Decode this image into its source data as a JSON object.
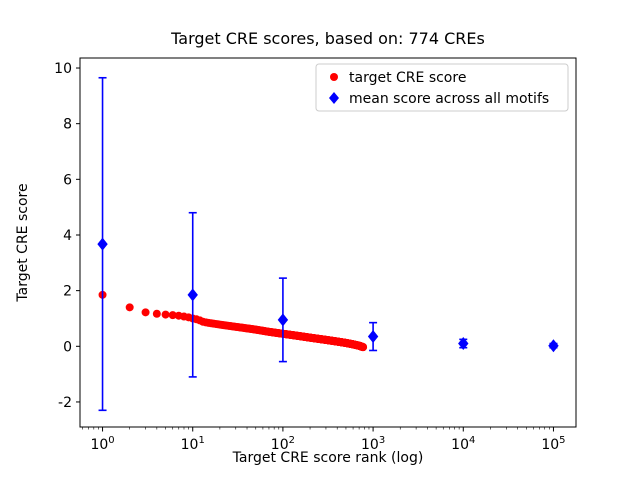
{
  "chart_data": {
    "type": "scatter",
    "title": "Target CRE scores, based on: 774 CREs",
    "xlabel": "Target CRE score rank (log)",
    "ylabel": "Target CRE score",
    "x_scale": "log",
    "xlim_decades": [
      -0.25,
      5.25
    ],
    "ylim": [
      -2.9,
      10.36
    ],
    "y_ticks": [
      -2,
      0,
      2,
      4,
      6,
      8,
      10
    ],
    "x_tick_decades": [
      0,
      1,
      2,
      3,
      4,
      5
    ],
    "grid": false,
    "colors": {
      "target": "#ff0000",
      "mean": "#0000ff",
      "legend_edge": "#cccccc",
      "spine": "#000000",
      "background": "#ffffff"
    },
    "series": [
      {
        "name": "target CRE score",
        "type": "scatter",
        "marker": "circle",
        "color": "#ff0000",
        "n_points": 774,
        "control_points": [
          [
            1,
            1.85
          ],
          [
            2,
            1.4
          ],
          [
            3,
            1.22
          ],
          [
            4,
            1.17
          ],
          [
            5,
            1.14
          ],
          [
            6,
            1.12
          ],
          [
            7,
            1.1
          ],
          [
            8,
            1.07
          ],
          [
            9,
            1.04
          ],
          [
            10,
            1.0
          ],
          [
            11,
            0.97
          ],
          [
            12,
            0.93
          ],
          [
            13,
            0.88
          ],
          [
            15,
            0.84
          ],
          [
            20,
            0.78
          ],
          [
            30,
            0.7
          ],
          [
            50,
            0.6
          ],
          [
            70,
            0.52
          ],
          [
            100,
            0.45
          ],
          [
            150,
            0.37
          ],
          [
            200,
            0.31
          ],
          [
            300,
            0.23
          ],
          [
            400,
            0.17
          ],
          [
            500,
            0.12
          ],
          [
            600,
            0.07
          ],
          [
            700,
            0.02
          ],
          [
            774,
            -0.03
          ]
        ]
      },
      {
        "name": "mean score across all motifs",
        "type": "errorbar",
        "marker": "diamond",
        "color": "#0000ff",
        "points": [
          {
            "x": 1,
            "y": 3.67,
            "lo": -2.3,
            "hi": 9.65
          },
          {
            "x": 10,
            "y": 1.85,
            "lo": -1.1,
            "hi": 4.8
          },
          {
            "x": 100,
            "y": 0.95,
            "lo": -0.55,
            "hi": 2.45
          },
          {
            "x": 1000,
            "y": 0.35,
            "lo": -0.15,
            "hi": 0.85
          },
          {
            "x": 10000,
            "y": 0.1,
            "lo": -0.05,
            "hi": 0.25
          },
          {
            "x": 100000,
            "y": 0.02,
            "lo": -0.05,
            "hi": 0.1
          }
        ]
      }
    ],
    "legend": {
      "position": "upper right",
      "entries": [
        "target CRE score",
        "mean score across all motifs"
      ]
    }
  }
}
